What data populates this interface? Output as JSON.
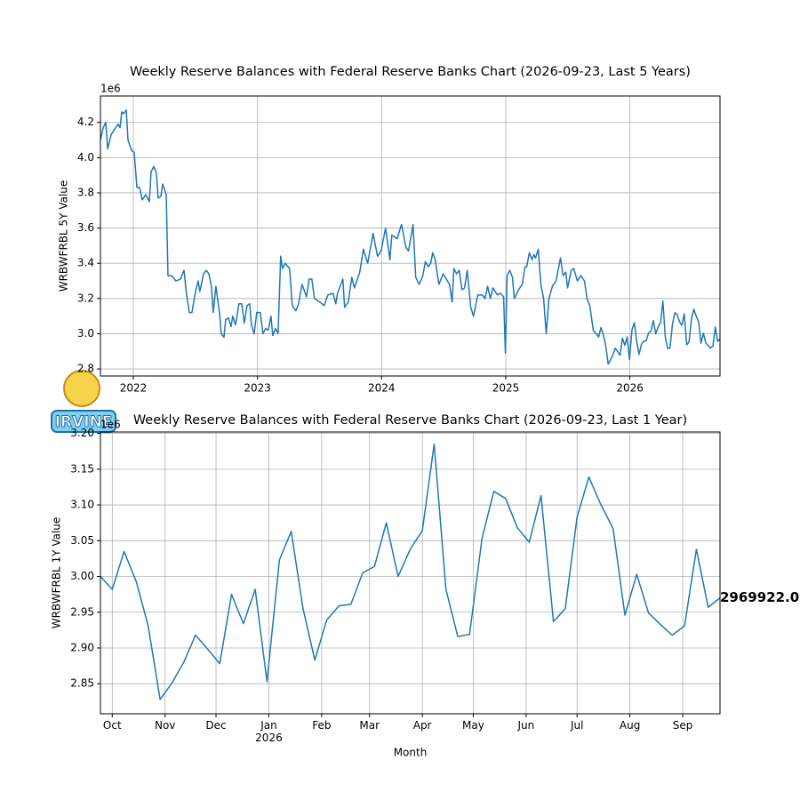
{
  "chart_data": [
    {
      "type": "line",
      "title": "Weekly Reserve Balances with Federal Reserve Banks Chart (2026-09-23, Last 5 Years)",
      "ylabel": "WRBWFRBL 5Y Value",
      "y_offset_label": "1e6",
      "color": "#1f77b4",
      "grid": true,
      "xlim": [
        2021.735,
        2026.726
      ],
      "xticks": [
        2022,
        2023,
        2024,
        2025,
        2026
      ],
      "ylim": [
        2.76,
        4.35
      ],
      "yticks": [
        2.8,
        {
          "value": 3.0,
          "label": "3.0"
        },
        3.2,
        3.4,
        3.6,
        3.8,
        {
          "value": 4.0,
          "label": "4.0"
        },
        4.2
      ],
      "x": [
        2021.735,
        2021.757,
        2021.778,
        2021.793,
        2021.821,
        2021.857,
        2021.878,
        2021.893,
        2021.907,
        2021.921,
        2021.943,
        2021.957,
        2021.986,
        2022.007,
        2022.029,
        2022.05,
        2022.072,
        2022.1,
        2022.129,
        2022.143,
        2022.165,
        2022.186,
        2022.2,
        2022.222,
        2022.236,
        2022.265,
        2022.279,
        2022.308,
        2022.343,
        2022.379,
        2022.408,
        2022.429,
        2022.451,
        2022.472,
        2022.501,
        2022.522,
        2022.536,
        2022.565,
        2022.587,
        2022.608,
        2022.629,
        2022.644,
        2022.665,
        2022.694,
        2022.708,
        2022.73,
        2022.744,
        2022.765,
        2022.787,
        2022.801,
        2022.823,
        2022.851,
        2022.873,
        2022.894,
        2022.916,
        2022.937,
        2022.951,
        2022.973,
        2022.994,
        2023.023,
        2023.044,
        2023.066,
        2023.087,
        2023.109,
        2023.123,
        2023.145,
        2023.166,
        2023.187,
        2023.202,
        2023.223,
        2023.259,
        2023.28,
        2023.309,
        2023.331,
        2023.359,
        2023.395,
        2023.416,
        2023.438,
        2023.459,
        2023.502,
        2023.538,
        2023.567,
        2023.609,
        2023.631,
        2023.645,
        2023.688,
        2023.702,
        2023.731,
        2023.76,
        2023.781,
        2023.824,
        2023.853,
        2023.888,
        2023.931,
        2023.967,
        2023.996,
        2024.032,
        2024.067,
        2024.082,
        2024.125,
        2024.16,
        2024.196,
        2024.217,
        2024.253,
        2024.275,
        2024.303,
        2024.332,
        2024.353,
        2024.375,
        2024.396,
        2024.411,
        2024.432,
        2024.461,
        2024.496,
        2024.547,
        2024.568,
        2024.582,
        2024.604,
        2024.625,
        2024.647,
        2024.668,
        2024.69,
        2024.718,
        2024.74,
        2024.775,
        2024.811,
        2024.833,
        2024.854,
        2024.876,
        2024.897,
        2024.933,
        2024.954,
        2024.983,
        2024.997,
        2025.011,
        2025.033,
        2025.054,
        2025.069,
        2025.104,
        2025.133,
        2025.155,
        2025.169,
        2025.19,
        2025.212,
        2025.226,
        2025.24,
        2025.262,
        2025.283,
        2025.305,
        2025.326,
        2025.348,
        2025.376,
        2025.405,
        2025.441,
        2025.462,
        2025.484,
        2025.498,
        2025.527,
        2025.548,
        2025.577,
        2025.605,
        2025.634,
        2025.655,
        2025.677,
        2025.705,
        2025.729,
        2025.748,
        2025.767,
        2025.787,
        2025.806,
        2025.825,
        2025.844,
        2025.863,
        2025.882,
        2025.902,
        2025.921,
        2025.94,
        2025.959,
        2025.978,
        2025.997,
        2026.017,
        2026.036,
        2026.055,
        2026.074,
        2026.093,
        2026.113,
        2026.132,
        2026.151,
        2026.17,
        2026.189,
        2026.208,
        2026.228,
        2026.247,
        2026.266,
        2026.285,
        2026.304,
        2026.323,
        2026.343,
        2026.362,
        2026.381,
        2026.4,
        2026.419,
        2026.438,
        2026.458,
        2026.477,
        2026.496,
        2026.515,
        2026.534,
        2026.554,
        2026.573,
        2026.592,
        2026.611,
        2026.63,
        2026.649,
        2026.669,
        2026.688,
        2026.707,
        2026.726
      ],
      "values": [
        4.1,
        4.17,
        4.2,
        4.05,
        4.13,
        4.17,
        4.19,
        4.17,
        4.26,
        4.25,
        4.27,
        4.1,
        4.04,
        4.03,
        3.83,
        3.83,
        3.76,
        3.79,
        3.75,
        3.92,
        3.95,
        3.91,
        3.77,
        3.78,
        3.85,
        3.79,
        3.33,
        3.33,
        3.3,
        3.31,
        3.36,
        3.22,
        3.12,
        3.12,
        3.24,
        3.3,
        3.24,
        3.34,
        3.36,
        3.34,
        3.27,
        3.12,
        3.27,
        3.12,
        3.0,
        2.98,
        3.08,
        3.09,
        3.04,
        3.1,
        3.05,
        3.17,
        3.17,
        3.06,
        3.16,
        3.17,
        3.05,
        3.0,
        3.12,
        3.12,
        3.0,
        3.03,
        3.02,
        3.1,
        2.99,
        3.03,
        3.0,
        3.44,
        3.37,
        3.4,
        3.37,
        3.16,
        3.13,
        3.17,
        3.28,
        3.21,
        3.31,
        3.31,
        3.2,
        3.18,
        3.16,
        3.22,
        3.23,
        3.17,
        3.23,
        3.31,
        3.15,
        3.18,
        3.32,
        3.26,
        3.35,
        3.48,
        3.4,
        3.57,
        3.44,
        3.47,
        3.6,
        3.42,
        3.56,
        3.54,
        3.62,
        3.49,
        3.47,
        3.62,
        3.32,
        3.28,
        3.33,
        3.41,
        3.38,
        3.4,
        3.46,
        3.42,
        3.28,
        3.34,
        3.28,
        3.18,
        3.37,
        3.34,
        3.36,
        3.25,
        3.26,
        3.36,
        3.15,
        3.1,
        3.22,
        3.22,
        3.2,
        3.27,
        3.2,
        3.26,
        3.22,
        3.23,
        3.21,
        2.89,
        3.33,
        3.36,
        3.32,
        3.2,
        3.25,
        3.28,
        3.38,
        3.38,
        3.46,
        3.42,
        3.45,
        3.43,
        3.48,
        3.28,
        3.2,
        3.0,
        3.2,
        3.27,
        3.3,
        3.43,
        3.33,
        3.35,
        3.26,
        3.36,
        3.37,
        3.3,
        3.33,
        3.3,
        3.2,
        3.16,
        3.02,
        3.0,
        2.982,
        3.035,
        2.992,
        2.93,
        2.828,
        2.851,
        2.88,
        2.918,
        2.898,
        2.878,
        2.975,
        2.934,
        2.982,
        2.853,
        3.023,
        3.063,
        2.955,
        2.883,
        2.939,
        2.959,
        2.961,
        3.005,
        3.014,
        3.075,
        3.0,
        3.039,
        3.064,
        3.185,
        2.982,
        2.916,
        2.919,
        3.053,
        3.119,
        3.109,
        3.068,
        3.048,
        3.113,
        2.937,
        2.955,
        3.083,
        3.139,
        3.101,
        3.067,
        2.946,
        3.003,
        2.949,
        2.933,
        2.918,
        2.931,
        3.038,
        2.957,
        2.969922
      ]
    },
    {
      "type": "line",
      "title": "Weekly Reserve Balances with Federal Reserve Banks Chart (2026-09-23, Last 1 Year)",
      "ylabel": "WRBWFRBL 1Y Value",
      "xlabel": "Month",
      "y_offset_label": "1e6",
      "color": "#1f77b4",
      "grid": true,
      "annotation": "2969922.00",
      "xlim": [
        2025.729,
        2026.726
      ],
      "xticks": [
        {
          "value": 2025.748,
          "label": "Oct"
        },
        {
          "value": 2025.833,
          "label": "Nov"
        },
        {
          "value": 2025.915,
          "label": "Dec"
        },
        {
          "value": 2026.0,
          "label": "Jan\n2026"
        },
        {
          "value": 2026.085,
          "label": "Feb"
        },
        {
          "value": 2026.162,
          "label": "Mar"
        },
        {
          "value": 2026.247,
          "label": "Apr"
        },
        {
          "value": 2026.329,
          "label": "May"
        },
        {
          "value": 2026.414,
          "label": "Jun"
        },
        {
          "value": 2026.496,
          "label": "Jul"
        },
        {
          "value": 2026.581,
          "label": "Aug"
        },
        {
          "value": 2026.666,
          "label": "Sep"
        }
      ],
      "ylim": [
        2.808,
        3.202
      ],
      "yticks": [
        2.85,
        {
          "value": 2.9,
          "label": "2.90"
        },
        2.95,
        {
          "value": 3.0,
          "label": "3.00"
        },
        3.05,
        {
          "value": 3.1,
          "label": "3.10"
        },
        3.15,
        {
          "value": 3.2,
          "label": "3.20"
        }
      ],
      "x": [
        2025.729,
        2025.748,
        2025.767,
        2025.787,
        2025.806,
        2025.825,
        2025.844,
        2025.863,
        2025.882,
        2025.902,
        2025.921,
        2025.94,
        2025.959,
        2025.978,
        2025.997,
        2026.017,
        2026.036,
        2026.055,
        2026.074,
        2026.093,
        2026.113,
        2026.132,
        2026.151,
        2026.17,
        2026.189,
        2026.208,
        2026.228,
        2026.247,
        2026.266,
        2026.285,
        2026.304,
        2026.323,
        2026.343,
        2026.362,
        2026.381,
        2026.4,
        2026.419,
        2026.438,
        2026.458,
        2026.477,
        2026.496,
        2026.515,
        2026.534,
        2026.554,
        2026.573,
        2026.592,
        2026.611,
        2026.63,
        2026.649,
        2026.669,
        2026.688,
        2026.707,
        2026.726
      ],
      "values": [
        3.0,
        2.982,
        3.035,
        2.992,
        2.93,
        2.828,
        2.851,
        2.88,
        2.918,
        2.898,
        2.878,
        2.975,
        2.934,
        2.982,
        2.853,
        3.023,
        3.063,
        2.955,
        2.883,
        2.939,
        2.959,
        2.961,
        3.005,
        3.014,
        3.075,
        3.0,
        3.039,
        3.064,
        3.185,
        2.982,
        2.916,
        2.919,
        3.053,
        3.119,
        3.109,
        3.068,
        3.048,
        3.113,
        2.937,
        2.955,
        3.083,
        3.139,
        3.101,
        3.067,
        2.946,
        3.003,
        2.949,
        2.933,
        2.918,
        2.931,
        3.038,
        2.957,
        2.969922
      ]
    }
  ],
  "watermark": "IRVINE"
}
